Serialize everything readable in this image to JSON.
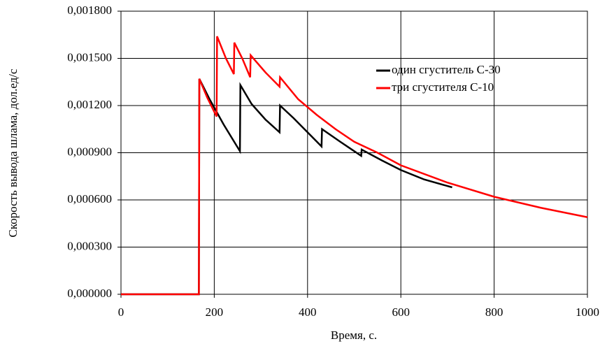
{
  "chart_data": {
    "type": "line",
    "x_label": "Время, с.",
    "y_label": "Скорость вывода шлама, дол.ед/с",
    "xlim": [
      0,
      1000
    ],
    "xticks": [
      0,
      200,
      400,
      600,
      800,
      1000
    ],
    "ylim": [
      0,
      0.0018
    ],
    "yticks": [
      {
        "value": 0,
        "label": "0,000000"
      },
      {
        "value": 0.0003,
        "label": "0,000300"
      },
      {
        "value": 0.0006,
        "label": "0,000600"
      },
      {
        "value": 0.0009,
        "label": "0,000900"
      },
      {
        "value": 0.0012,
        "label": "0,001200"
      },
      {
        "value": 0.0015,
        "label": "0,001500"
      },
      {
        "value": 0.0018,
        "label": "0,001800"
      }
    ],
    "grid": true,
    "legend": "upper right",
    "series": [
      {
        "name": "один сгуститель С-30",
        "color": "#000000",
        "x": [
          0,
          167,
          168,
          190,
          220,
          255,
          256,
          280,
          310,
          340,
          341,
          370,
          400,
          430,
          431,
          470,
          515,
          516,
          560,
          600,
          650,
          710
        ],
        "values": [
          0,
          0,
          0.00137,
          0.00124,
          0.00108,
          0.00091,
          0.00133,
          0.00121,
          0.00111,
          0.00103,
          0.0012,
          0.00112,
          0.00103,
          0.00094,
          0.00105,
          0.00097,
          0.00088,
          0.00092,
          0.00085,
          0.00079,
          0.00073,
          0.00068
        ]
      },
      {
        "name": "три сгустителя С-10",
        "color": "#ff0000",
        "x": [
          0,
          167,
          168,
          185,
          205,
          206,
          225,
          242,
          243,
          260,
          277,
          278,
          310,
          340,
          341,
          380,
          420,
          460,
          500,
          550,
          600,
          700,
          800,
          900,
          1000
        ],
        "values": [
          0,
          0,
          0.00137,
          0.00125,
          0.00113,
          0.00164,
          0.0015,
          0.0014,
          0.0016,
          0.0015,
          0.00138,
          0.00152,
          0.00141,
          0.00132,
          0.00138,
          0.00124,
          0.00114,
          0.00105,
          0.00097,
          0.0009,
          0.00082,
          0.00071,
          0.00062,
          0.00055,
          0.00049
        ]
      }
    ]
  }
}
